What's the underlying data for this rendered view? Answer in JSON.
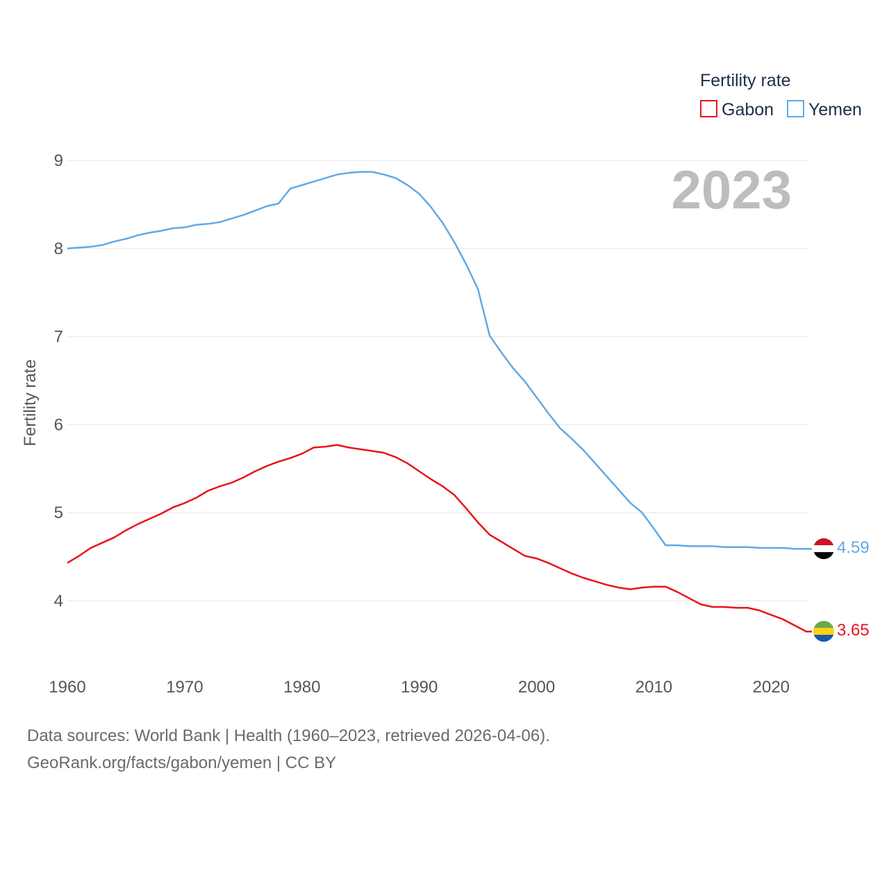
{
  "chart_data": {
    "type": "line",
    "legend_title": "Fertility rate",
    "ylabel": "Fertility rate",
    "xlabel": "",
    "year_label": "2023",
    "ylim": [
      3.5,
      9.3
    ],
    "xlim": [
      1960,
      2023
    ],
    "yticks": [
      4,
      5,
      6,
      7,
      8,
      9
    ],
    "xticks": [
      1960,
      1970,
      1980,
      1990,
      2000,
      2010,
      2020
    ],
    "x": [
      1960,
      1961,
      1962,
      1963,
      1964,
      1965,
      1966,
      1967,
      1968,
      1969,
      1970,
      1971,
      1972,
      1973,
      1974,
      1975,
      1976,
      1977,
      1978,
      1979,
      1980,
      1981,
      1982,
      1983,
      1984,
      1985,
      1986,
      1987,
      1988,
      1989,
      1990,
      1991,
      1992,
      1993,
      1994,
      1995,
      1996,
      1997,
      1998,
      1999,
      2000,
      2001,
      2002,
      2003,
      2004,
      2005,
      2006,
      2007,
      2008,
      2009,
      2010,
      2011,
      2012,
      2013,
      2014,
      2015,
      2016,
      2017,
      2018,
      2019,
      2020,
      2021,
      2022,
      2023
    ],
    "series": [
      {
        "name": "Gabon",
        "color": "#e8141b",
        "end_label": "3.65",
        "values": [
          4.43,
          4.51,
          4.6,
          4.66,
          4.72,
          4.8,
          4.87,
          4.93,
          4.99,
          5.06,
          5.11,
          5.17,
          5.25,
          5.3,
          5.34,
          5.4,
          5.47,
          5.53,
          5.58,
          5.62,
          5.67,
          5.74,
          5.75,
          5.77,
          5.74,
          5.72,
          5.7,
          5.68,
          5.63,
          5.56,
          5.47,
          5.38,
          5.3,
          5.2,
          5.05,
          4.89,
          4.75,
          4.67,
          4.59,
          4.51,
          4.48,
          4.43,
          4.37,
          4.31,
          4.26,
          4.22,
          4.18,
          4.15,
          4.13,
          4.15,
          4.16,
          4.16,
          4.1,
          4.03,
          3.96,
          3.93,
          3.93,
          3.92,
          3.92,
          3.89,
          3.84,
          3.79,
          3.72,
          3.65
        ]
      },
      {
        "name": "Yemen",
        "color": "#61a9e6",
        "end_label": "4.59",
        "values": [
          8.0,
          8.01,
          8.02,
          8.04,
          8.08,
          8.11,
          8.15,
          8.18,
          8.2,
          8.23,
          8.24,
          8.27,
          8.28,
          8.3,
          8.34,
          8.38,
          8.43,
          8.48,
          8.51,
          8.68,
          8.72,
          8.76,
          8.8,
          8.84,
          8.86,
          8.87,
          8.87,
          8.84,
          8.8,
          8.72,
          8.62,
          8.47,
          8.29,
          8.07,
          7.82,
          7.54,
          7.01,
          6.82,
          6.64,
          6.49,
          6.31,
          6.13,
          5.96,
          5.84,
          5.71,
          5.56,
          5.41,
          5.26,
          5.11,
          5.0,
          4.82,
          4.63,
          4.63,
          4.62,
          4.62,
          4.62,
          4.61,
          4.61,
          4.61,
          4.6,
          4.6,
          4.6,
          4.59,
          4.59
        ]
      }
    ]
  },
  "footer": {
    "line1": "Data sources: World Bank | Health (1960–2023, retrieved 2026-04-06).",
    "line2": "GeoRank.org/facts/gabon/yemen | CC BY"
  }
}
